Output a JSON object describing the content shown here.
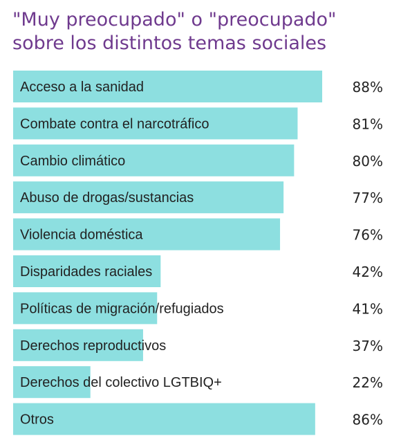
{
  "chart_data": {
    "type": "bar",
    "orientation": "horizontal",
    "title_lines": [
      "\"Muy preocupado\" o \"preocupado\"",
      "sobre los distintos temas sociales"
    ],
    "categories": [
      "Acceso a la sanidad",
      "Combate contra el narcotráfico",
      "Cambio climático",
      "Abuso de drogas/sustancias",
      "Violencia doméstica",
      "Disparidades raciales",
      "Políticas de migración/refugiados",
      "Derechos reproductivos",
      "Derechos del colectivo LGTBIQ+",
      "Otros"
    ],
    "values": [
      88,
      81,
      80,
      77,
      76,
      42,
      41,
      37,
      22,
      86
    ],
    "value_labels": [
      "88%",
      "81%",
      "80%",
      "77%",
      "76%",
      "42%",
      "41%",
      "37%",
      "22%",
      "86%"
    ],
    "xlim": [
      0,
      100
    ],
    "bar_color": "#8ddfe0",
    "title_color": "#6f3a8e",
    "text_color": "#222222",
    "grid": false,
    "legend": "none"
  }
}
